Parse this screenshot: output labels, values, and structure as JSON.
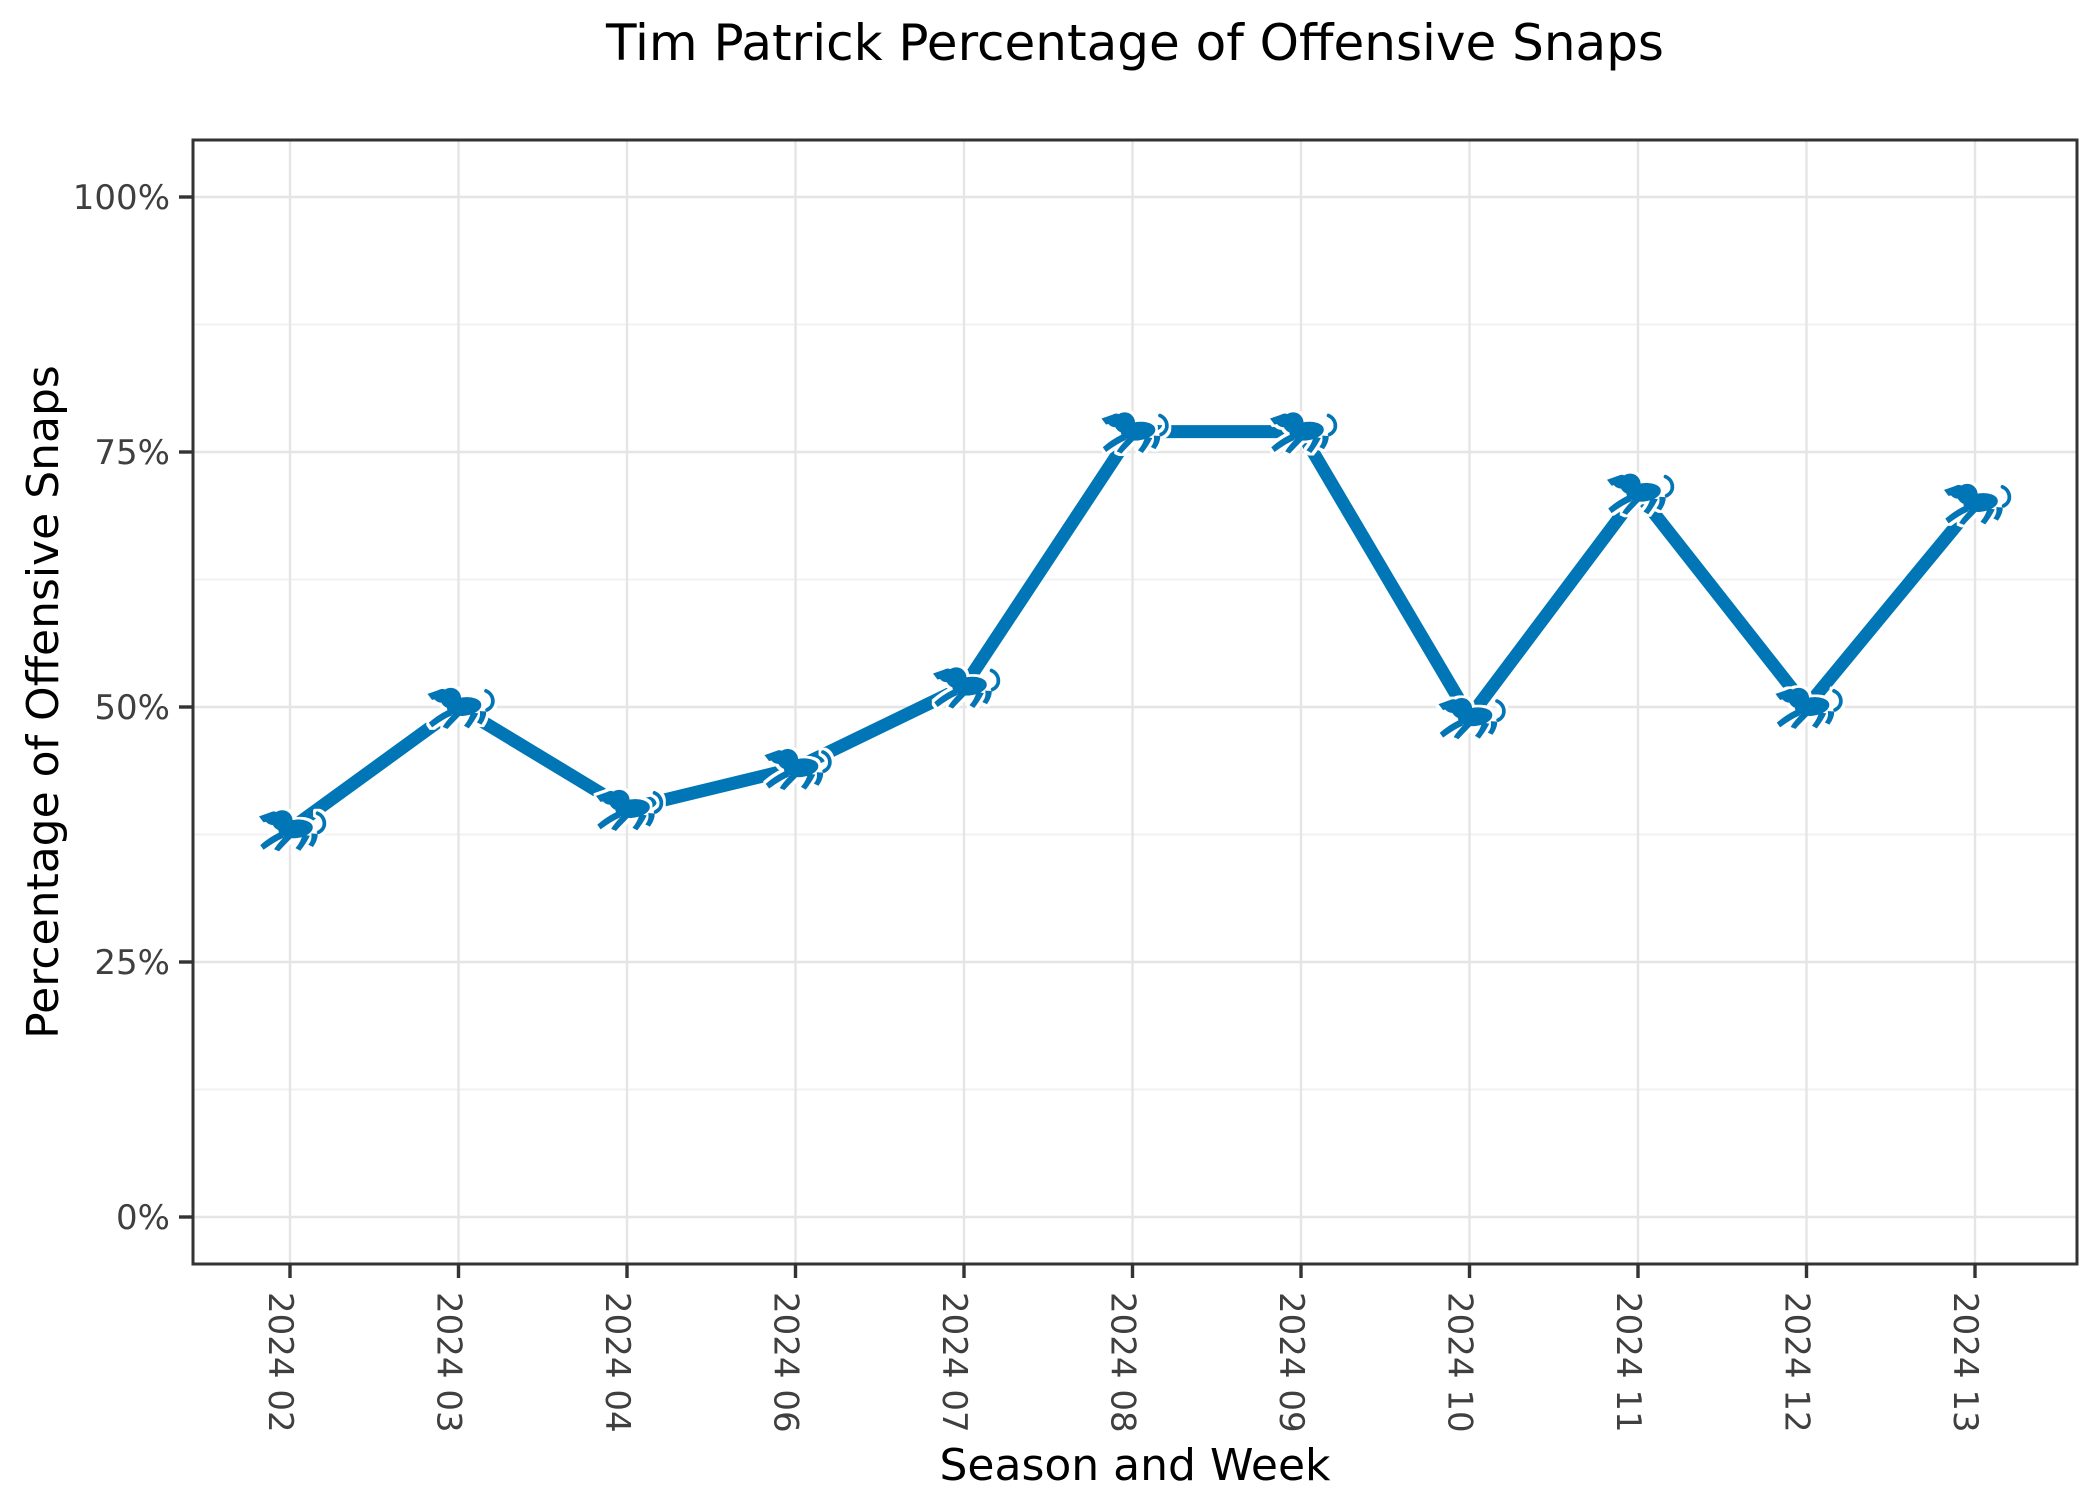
{
  "figure": {
    "background": "#ffffff",
    "title": "Tim Patrick Percentage of Offensive Snaps"
  },
  "chart_data": {
    "type": "line",
    "title": "Tim Patrick Percentage of Offensive Snaps",
    "xlabel": "Season and Week",
    "ylabel": "Percentage of Offensive Snaps",
    "categories": [
      "2024 02",
      "2024 03",
      "2024 04",
      "2024 06",
      "2024 07",
      "2024 08",
      "2024 09",
      "2024 10",
      "2024 11",
      "2024 12",
      "2024 13"
    ],
    "values": [
      38,
      50,
      40,
      44,
      52,
      77,
      77,
      49,
      71,
      50,
      70
    ],
    "unit": "%",
    "ylim": [
      -4.5,
      105
    ],
    "yticks": [
      0,
      25,
      50,
      75,
      100
    ],
    "ytick_labels": [
      "0%",
      "25%",
      "50%",
      "75%",
      "100%"
    ],
    "minor_yticks": [
      12.5,
      37.5,
      62.5,
      87.5
    ],
    "grid": "on",
    "legend": "none",
    "series_name": "Tim Patrick offensive snap share",
    "marker": "detroit-lions-logo",
    "line_color": "#0076B6",
    "marker_color": "#0076B6",
    "marker_outline": "#ffffff"
  },
  "style": {
    "axis_color": "#333333",
    "grid_major_color": "#e5e5e5",
    "grid_minor_color": "#f1f1f1",
    "tick_label_color": "#3f3f3f",
    "text_color": "#000000",
    "panel_background": "#ffffff"
  }
}
